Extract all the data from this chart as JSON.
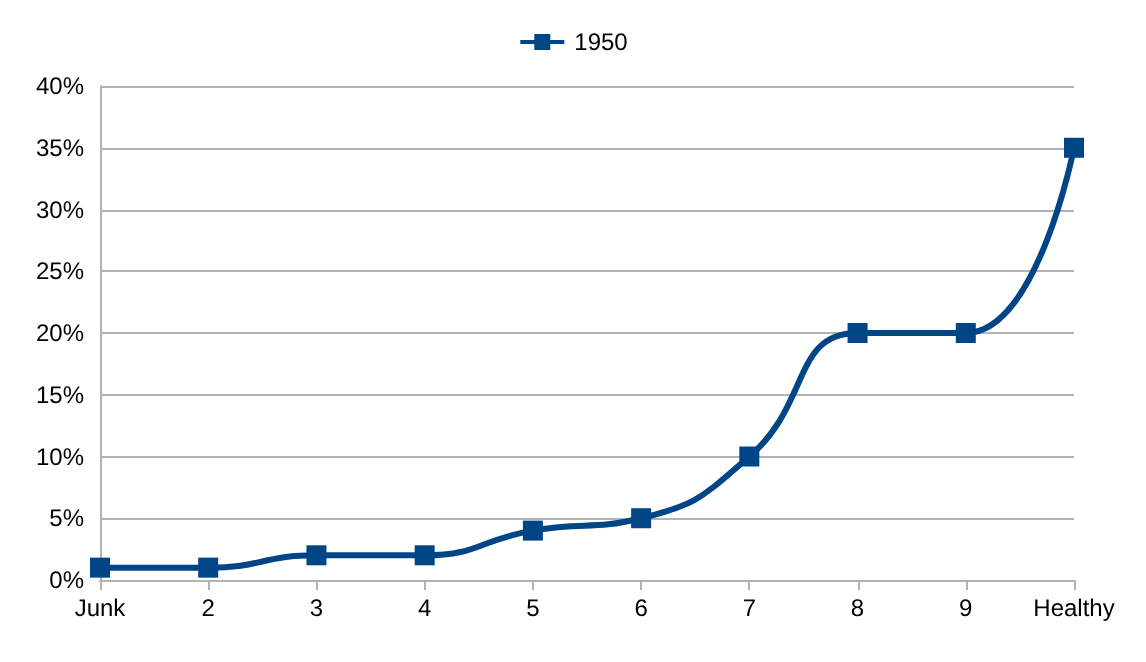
{
  "chart_data": {
    "type": "line",
    "categories": [
      "Junk",
      "2",
      "3",
      "4",
      "5",
      "6",
      "7",
      "8",
      "9",
      "Healthy"
    ],
    "series": [
      {
        "name": "1950",
        "color": "#004586",
        "values": [
          1,
          1,
          2,
          2,
          4,
          5,
          10,
          20,
          20,
          35
        ]
      }
    ],
    "ylim": [
      0,
      40
    ],
    "yticks": [
      {
        "value": 0,
        "label": "0%"
      },
      {
        "value": 5,
        "label": "5%"
      },
      {
        "value": 10,
        "label": "10%"
      },
      {
        "value": 15,
        "label": "15%"
      },
      {
        "value": 20,
        "label": "20%"
      },
      {
        "value": 25,
        "label": "25%"
      },
      {
        "value": 30,
        "label": "30%"
      },
      {
        "value": 35,
        "label": "35%"
      },
      {
        "value": 40,
        "label": "40%"
      }
    ],
    "grid": "y",
    "legend": "top",
    "marker": "square",
    "line_style": "solid"
  }
}
